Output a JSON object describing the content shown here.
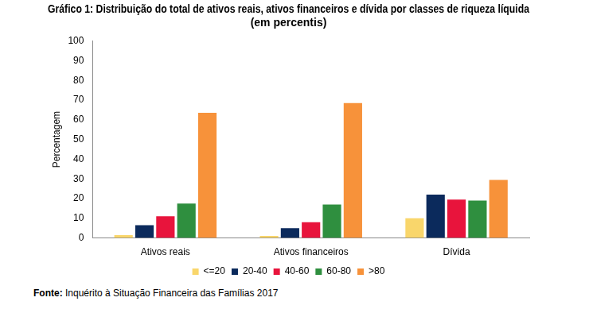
{
  "chart_data": {
    "type": "bar",
    "title": [
      "Gráfico 1: Distribuição do total de ativos reais, ativos financeiros e dívida por classes de riqueza líquida",
      "(em percentis)"
    ],
    "y_label": "Percentagem",
    "categories": [
      "Ativos reais",
      "Ativos financeiros",
      "Dívida"
    ],
    "series": [
      {
        "name": "<=20",
        "color": "#f9d66b",
        "values": [
          1.5,
          1,
          10
        ]
      },
      {
        "name": "20-40",
        "color": "#0b2a5c",
        "values": [
          6.5,
          5,
          22
        ]
      },
      {
        "name": "40-60",
        "color": "#e8143c",
        "values": [
          11,
          8,
          19.5
        ]
      },
      {
        "name": "60-80",
        "color": "#2f8f3f",
        "values": [
          17.5,
          17,
          19
        ]
      },
      {
        "name": ">80",
        "color": "#f7923a",
        "values": [
          63.5,
          68.5,
          29.5
        ]
      }
    ],
    "ylim": [
      0,
      100
    ],
    "yticks": [
      0,
      10,
      20,
      30,
      40,
      50,
      60,
      70,
      80,
      90,
      100
    ],
    "grid": false,
    "legend": "bottom",
    "source_label": "Fonte:",
    "source": "Inquérito à Situação Financeira das Famílias 2017"
  }
}
